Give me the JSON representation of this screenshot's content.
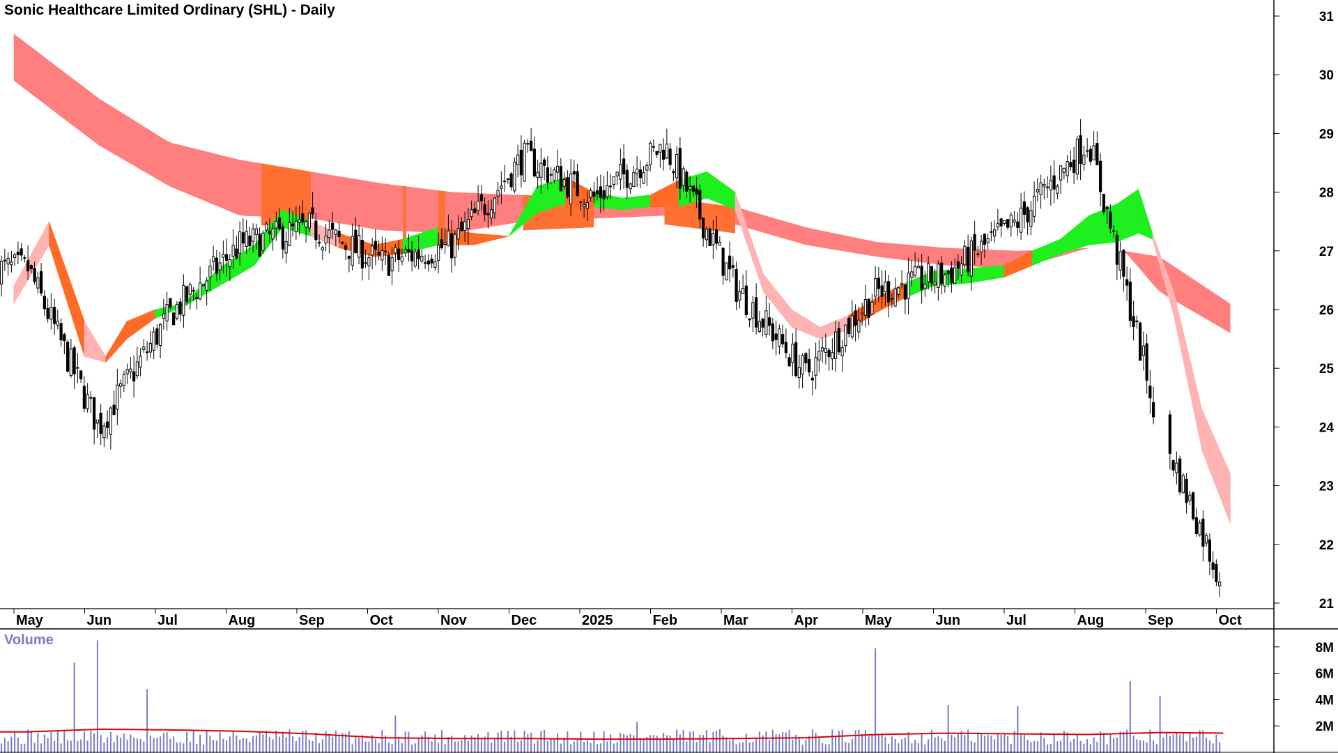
{
  "title": "Sonic Healthcare Limited Ordinary (SHL) - Daily",
  "volume_label": "Volume",
  "colors": {
    "long_band": "#ff7f7f",
    "long_band_orange": "#ff7033",
    "short_band_bear": "#ffb3b3",
    "short_band_bull": "#1fee1f",
    "short_band_orange": "#ff6a26",
    "candle": "#000000",
    "volume_bar": "#7a7ac8",
    "volume_avg": "#e00000"
  },
  "chart_data": [
    {
      "type": "candlestick",
      "title": "Sonic Healthcare Limited Ordinary (SHL) - Daily",
      "ylim": [
        20.9,
        31.2
      ],
      "y_ticks": [
        21,
        22,
        23,
        24,
        25,
        26,
        27,
        28,
        29,
        30,
        31
      ],
      "x_ticks": [
        "May",
        "Jun",
        "Jul",
        "Aug",
        "Sep",
        "Oct",
        "Nov",
        "Dec",
        "2025",
        "Feb",
        "Mar",
        "Apr",
        "May",
        "Jun",
        "Jul",
        "Aug",
        "Sep",
        "Oct"
      ],
      "price_anchors": {
        "months": [
          0,
          1,
          2,
          3,
          4,
          5,
          6,
          7,
          8,
          9,
          10,
          11,
          12,
          13,
          14,
          15,
          16,
          16.9
        ],
        "close": [
          26.7,
          24.0,
          25.9,
          27.1,
          27.4,
          26.8,
          27.1,
          28.6,
          27.9,
          28.8,
          26.4,
          24.9,
          26.3,
          26.6,
          27.5,
          28.9,
          24.0,
          21.3
        ]
      },
      "gap": {
        "from_month": 15.9,
        "price_before": 24.0,
        "price_after": 23.0
      },
      "long_band": {
        "months": [
          -0.2,
          1,
          2,
          3,
          4,
          5,
          6,
          7,
          8,
          9,
          10,
          11,
          12,
          13,
          14,
          15,
          15.5,
          16,
          17
        ],
        "upper": [
          30.7,
          29.6,
          28.85,
          28.55,
          28.35,
          28.15,
          28.0,
          27.95,
          27.9,
          27.9,
          27.75,
          27.4,
          27.15,
          27.05,
          27.0,
          27.05,
          27.0,
          26.9,
          26.1
        ],
        "lower": [
          29.9,
          28.8,
          28.1,
          27.6,
          27.55,
          27.35,
          27.3,
          27.5,
          27.55,
          27.6,
          27.45,
          27.1,
          26.9,
          26.75,
          26.7,
          27.05,
          27.0,
          26.3,
          25.6
        ]
      },
      "short_band": {
        "months": [
          -0.2,
          0.3,
          0.8,
          1.1,
          1.4,
          1.8,
          2.2,
          2.7,
          3.2,
          3.6,
          4.0,
          4.4,
          4.9,
          5.3,
          5.8,
          6.3,
          6.8,
          7.2,
          7.6,
          8.0,
          8.4,
          8.8,
          9.2,
          9.6,
          10.0,
          10.4,
          10.8,
          11.2,
          11.6,
          12.0,
          12.4,
          12.8,
          13.3,
          13.8,
          14.2,
          14.6,
          15.0,
          15.4,
          15.7,
          15.9,
          16.2,
          16.6,
          17.0
        ],
        "upper": [
          26.4,
          27.5,
          25.8,
          25.2,
          25.8,
          26.0,
          26.1,
          26.7,
          27.1,
          27.7,
          27.5,
          27.3,
          27.1,
          27.2,
          27.4,
          27.3,
          27.25,
          28.1,
          28.25,
          28.0,
          27.9,
          27.95,
          28.2,
          28.35,
          28.0,
          26.6,
          26.0,
          25.7,
          25.9,
          26.2,
          26.45,
          26.65,
          26.7,
          26.75,
          27.0,
          27.2,
          27.6,
          27.8,
          28.05,
          27.3,
          26.3,
          24.3,
          23.2
        ],
        "lower": [
          26.1,
          27.1,
          25.2,
          25.1,
          25.5,
          25.85,
          26.05,
          26.4,
          26.75,
          27.4,
          27.25,
          27.05,
          26.9,
          26.95,
          27.1,
          27.1,
          27.25,
          27.65,
          27.8,
          27.75,
          27.7,
          27.75,
          27.75,
          27.9,
          27.7,
          26.3,
          25.7,
          25.5,
          25.65,
          25.95,
          26.2,
          26.4,
          26.45,
          26.55,
          26.75,
          26.95,
          27.1,
          27.15,
          27.3,
          27.2,
          25.9,
          23.6,
          22.35
        ],
        "colors": [
          "bear",
          "orange",
          "bear",
          "orange",
          "orange",
          "bull",
          "bull",
          "bull",
          "bull",
          "bull",
          "bear",
          "orange",
          "orange",
          "bull",
          "orange",
          "orange",
          "bull",
          "bull",
          "orange",
          "bull",
          "bull",
          "orange",
          "bull",
          "bull",
          "bear",
          "bear",
          "bear",
          "bear",
          "orange",
          "orange",
          "bull",
          "bull",
          "bull",
          "orange",
          "bull",
          "bull",
          "bull",
          "bull",
          "bull",
          "bear",
          "bear",
          "bear",
          "bear"
        ]
      },
      "long_band_orange_months": [
        [
          3.3,
          4.0
        ],
        [
          5.3,
          5.35
        ],
        [
          5.8,
          5.9
        ],
        [
          7.0,
          8.0
        ],
        [
          9.0,
          10.0
        ]
      ]
    },
    {
      "type": "bar",
      "title": "Volume",
      "y_ticks": [
        "2M",
        "4M",
        "6M",
        "8M"
      ],
      "y_tick_values": [
        2,
        4,
        6,
        8
      ],
      "unit": "M",
      "ylim": [
        0,
        9
      ],
      "baseline_volume": 1.3,
      "average_volume": {
        "months": [
          0,
          1,
          2,
          3,
          4,
          5,
          6,
          7,
          8,
          9,
          10,
          11,
          12,
          13,
          14,
          15,
          16,
          17
        ],
        "values": [
          1.55,
          1.75,
          1.7,
          1.6,
          1.4,
          1.1,
          1.05,
          1.05,
          1.0,
          1.0,
          1.05,
          1.1,
          1.35,
          1.45,
          1.4,
          1.35,
          1.5,
          1.45
        ]
      },
      "spikes": {
        "months": [
          0.66,
          1.0,
          1.7,
          4.8,
          5.2,
          8.6,
          12.0,
          13.0,
          14.0,
          15.6,
          16.0,
          16.9
        ],
        "values": [
          6.8,
          8.5,
          4.8,
          3.0,
          2.8,
          2.3,
          7.9,
          3.6,
          3.5,
          5.4,
          4.3,
          4.2
        ]
      }
    }
  ]
}
